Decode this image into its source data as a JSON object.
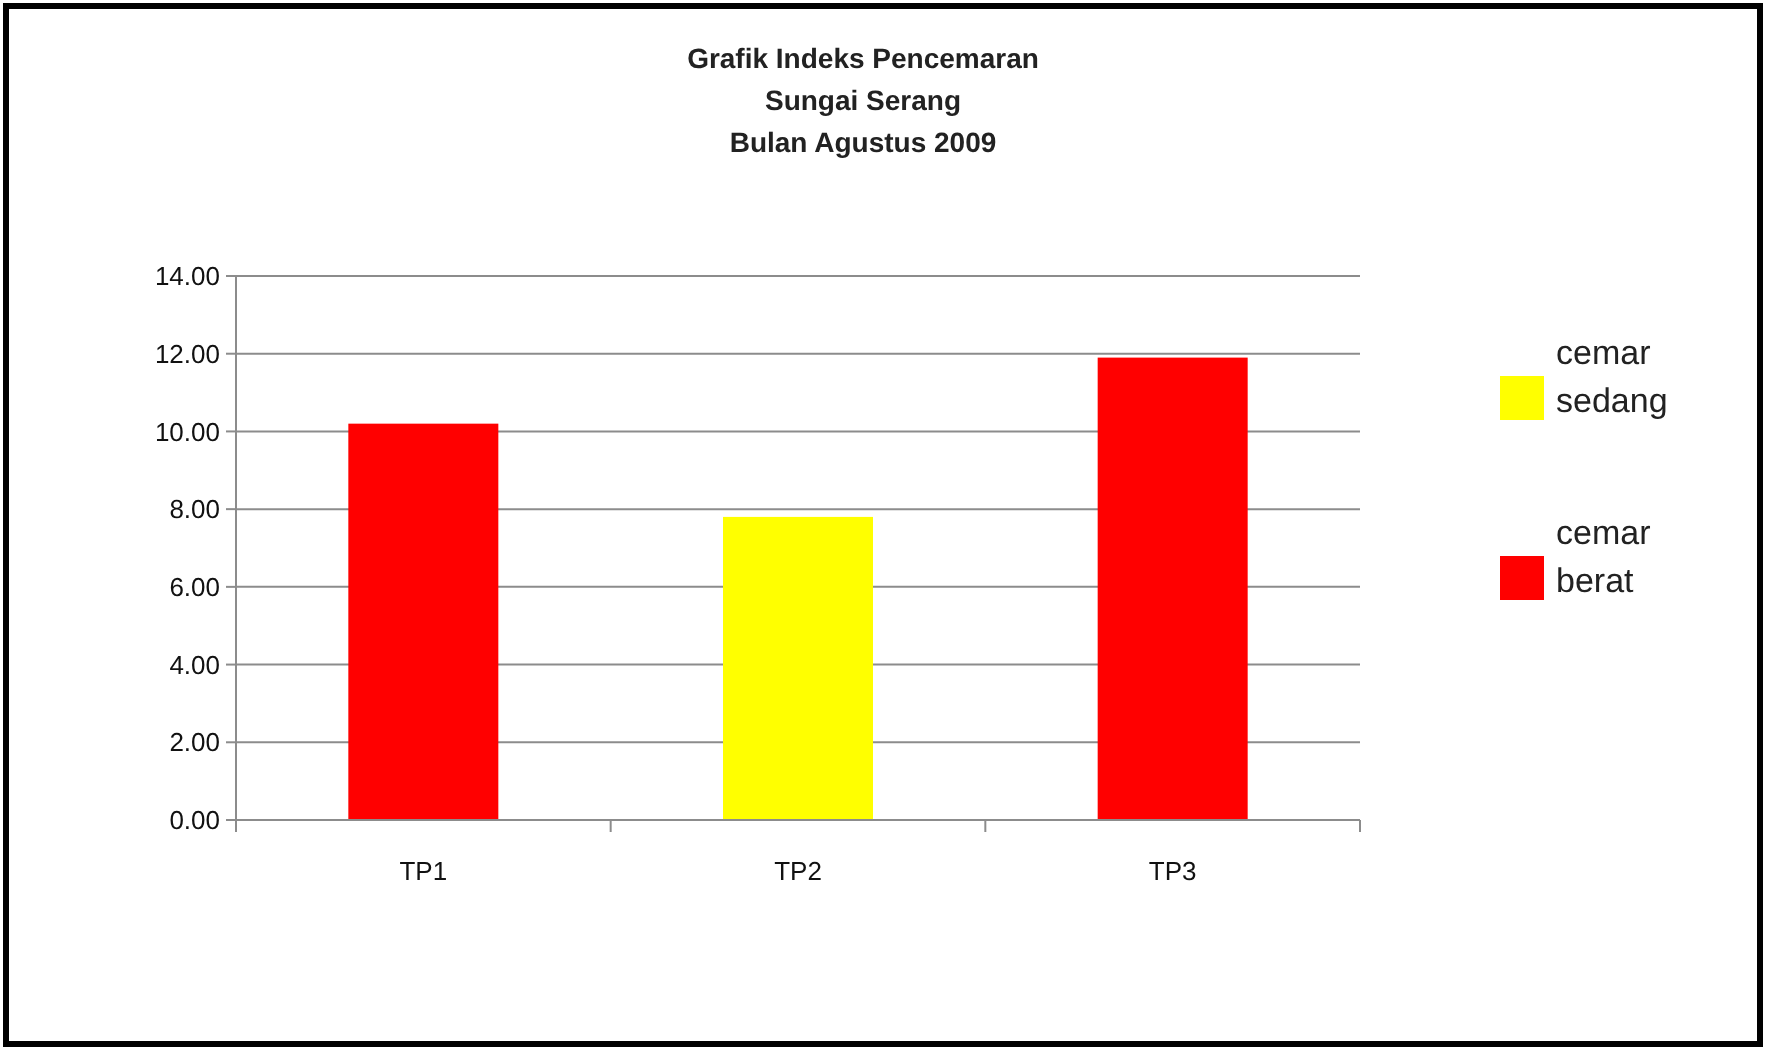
{
  "chart_data": {
    "type": "bar",
    "title": "Grafik Indeks Pencemaran\nSungai Serang\nBulan Agustus 2009",
    "categories": [
      "TP1",
      "TP2",
      "TP3"
    ],
    "stacked": true,
    "series": [
      {
        "name": "cemar sedang",
        "color": "#ffff00",
        "values": [
          null,
          7.8,
          null
        ]
      },
      {
        "name": "cemar berat",
        "color": "#ff0000",
        "values": [
          10.2,
          null,
          11.9
        ]
      }
    ],
    "ylim": [
      0,
      14
    ],
    "yticks": [
      {
        "value": 0,
        "label": "0.00"
      },
      {
        "value": 2,
        "label": "2.00"
      },
      {
        "value": 4,
        "label": "4.00"
      },
      {
        "value": 6,
        "label": "6.00"
      },
      {
        "value": 8,
        "label": "8.00"
      },
      {
        "value": 10,
        "label": "10.00"
      },
      {
        "value": 12,
        "label": "12.00"
      },
      {
        "value": 14,
        "label": "14.00"
      }
    ],
    "grid": "y",
    "legend": "right"
  }
}
